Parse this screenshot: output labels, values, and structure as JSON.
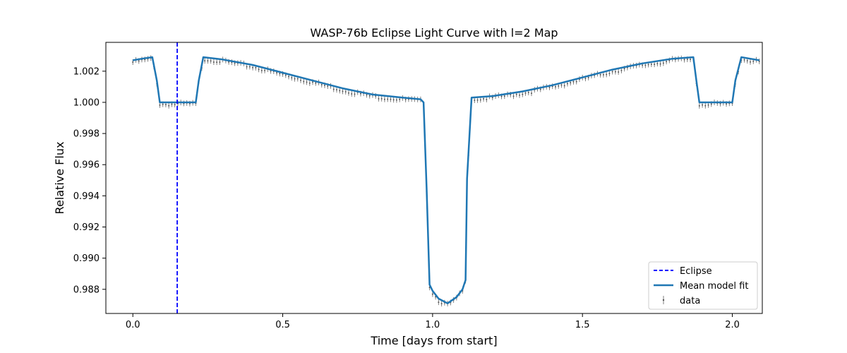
{
  "chart_data": {
    "type": "line",
    "title": "WASP-76b Eclipse Light Curve with l=2 Map",
    "xlabel": "Time [days from start]",
    "ylabel": "Relative Flux",
    "xlim": [
      -0.09,
      2.1
    ],
    "ylim": [
      0.98645,
      1.00385
    ],
    "xticks": [
      0.0,
      0.5,
      1.0,
      1.5,
      2.0
    ],
    "xtick_labels": [
      "0.0",
      "0.5",
      "1.0",
      "1.5",
      "2.0"
    ],
    "yticks": [
      0.988,
      0.99,
      0.992,
      0.994,
      0.996,
      0.998,
      1.0,
      1.002
    ],
    "ytick_labels": [
      "0.988",
      "0.990",
      "0.992",
      "0.994",
      "0.996",
      "0.998",
      "1.000",
      "1.002"
    ],
    "grid": false,
    "legend_position": "lower-right",
    "eclipse": {
      "name": "Eclipse",
      "x": 0.148,
      "color": "#0000ff"
    },
    "series": [
      {
        "name": "Mean model fit",
        "color": "#1f77b4",
        "x": [
          0.0,
          0.03,
          0.065,
          0.08,
          0.09,
          0.12,
          0.15,
          0.18,
          0.21,
          0.22,
          0.235,
          0.3,
          0.4,
          0.5,
          0.6,
          0.7,
          0.8,
          0.9,
          0.96,
          0.97,
          0.98,
          0.99,
          1.0,
          1.02,
          1.05,
          1.08,
          1.1,
          1.11,
          1.115,
          1.13,
          1.2,
          1.3,
          1.4,
          1.5,
          1.6,
          1.7,
          1.8,
          1.87,
          1.88,
          1.89,
          1.92,
          1.96,
          1.99,
          2.0,
          2.01,
          2.03,
          2.06,
          2.09
        ],
        "y": [
          1.0027,
          1.0028,
          1.0029,
          1.0014,
          1.0,
          1.0,
          1.0,
          1.0,
          1.0,
          1.0014,
          1.0029,
          1.00275,
          1.0024,
          1.0019,
          1.0014,
          1.0009,
          1.0005,
          1.0003,
          1.0002,
          1.0,
          0.9945,
          0.9883,
          0.9879,
          0.9874,
          0.9871,
          0.9875,
          0.988,
          0.9886,
          0.9951,
          1.0003,
          1.0004,
          1.0007,
          1.0011,
          1.0016,
          1.0021,
          1.0025,
          1.0028,
          1.0029,
          1.0014,
          1.0,
          1.0,
          1.0,
          1.0,
          1.0,
          1.0014,
          1.0029,
          1.0028,
          1.0027
        ]
      },
      {
        "name": "data",
        "color": "#7f7f7f"
      }
    ]
  }
}
